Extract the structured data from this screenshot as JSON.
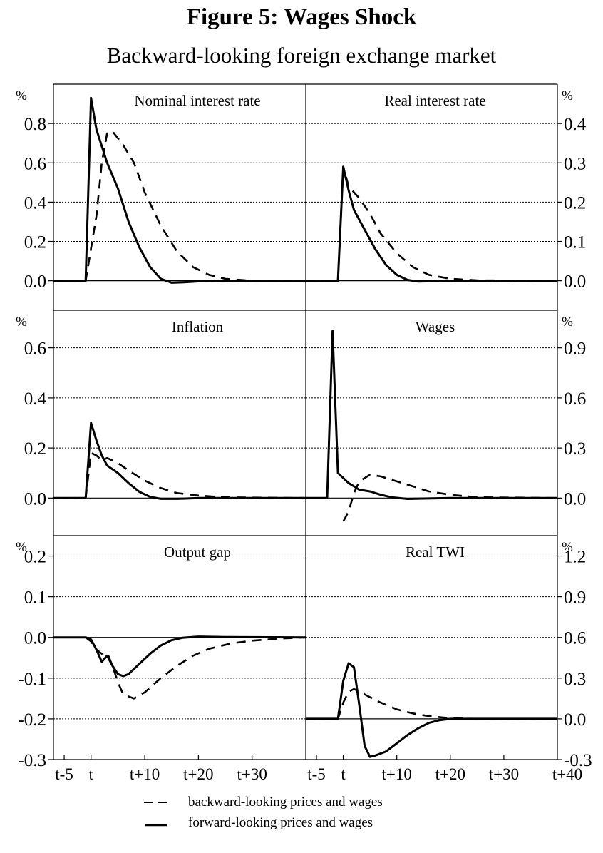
{
  "figure": {
    "title": "Figure 5: Wages Shock",
    "subtitle": "Backward-looking foreign exchange market"
  },
  "legend": {
    "items": [
      {
        "label": "backward-looking prices and wages",
        "style": "dashed"
      },
      {
        "label": "forward-looking prices and wages",
        "style": "solid"
      }
    ]
  },
  "x_axis": {
    "ticks": [
      {
        "value": -5,
        "label": "t-5"
      },
      {
        "value": 0,
        "label": "t"
      },
      {
        "value": 10,
        "label": "t+10"
      },
      {
        "value": 20,
        "label": "t+20"
      },
      {
        "value": 30,
        "label": "t+30"
      }
    ],
    "last_label": "t+40",
    "xlim": [
      -7,
      40
    ]
  },
  "chart_data": [
    {
      "type": "line",
      "panel": "top-left",
      "title": "Nominal interest rate",
      "unit": "%",
      "ylim": [
        -0.15,
        1.0
      ],
      "yticks": [
        0.0,
        0.2,
        0.4,
        0.6,
        0.8
      ],
      "tick_labels": [
        "0.0",
        "0.2",
        "0.4",
        "0.6",
        "0.8"
      ],
      "grid": true,
      "series": [
        {
          "style": "solid",
          "points": [
            [
              -7,
              0
            ],
            [
              -1,
              0
            ],
            [
              0,
              0.93
            ],
            [
              1,
              0.77
            ],
            [
              3,
              0.6
            ],
            [
              5,
              0.47
            ],
            [
              7,
              0.3
            ],
            [
              9,
              0.17
            ],
            [
              11,
              0.07
            ],
            [
              13,
              0.01
            ],
            [
              15,
              -0.01
            ],
            [
              17,
              -0.008
            ],
            [
              20,
              -0.003
            ],
            [
              25,
              0
            ],
            [
              40,
              0
            ]
          ]
        },
        {
          "style": "dashed",
          "points": [
            [
              -7,
              0
            ],
            [
              -1,
              0
            ],
            [
              1,
              0.33
            ],
            [
              2,
              0.6
            ],
            [
              3,
              0.75
            ],
            [
              4,
              0.76
            ],
            [
              6,
              0.69
            ],
            [
              8,
              0.6
            ],
            [
              10,
              0.45
            ],
            [
              13,
              0.28
            ],
            [
              16,
              0.15
            ],
            [
              19,
              0.07
            ],
            [
              22,
              0.03
            ],
            [
              25,
              0.01
            ],
            [
              30,
              0
            ],
            [
              40,
              0
            ]
          ]
        }
      ]
    },
    {
      "type": "line",
      "panel": "top-right",
      "title": "Real interest rate",
      "unit": "%",
      "ylim": [
        -0.075,
        0.5
      ],
      "yticks": [
        0.0,
        0.1,
        0.2,
        0.3,
        0.4
      ],
      "tick_labels": [
        "0.0",
        "0.1",
        "0.2",
        "0.3",
        "0.4"
      ],
      "grid": true,
      "series": [
        {
          "style": "solid",
          "points": [
            [
              -7,
              0
            ],
            [
              -1,
              0
            ],
            [
              0,
              0.29
            ],
            [
              1,
              0.23
            ],
            [
              2,
              0.18
            ],
            [
              4,
              0.13
            ],
            [
              6,
              0.08
            ],
            [
              8,
              0.04
            ],
            [
              10,
              0.015
            ],
            [
              12,
              0.002
            ],
            [
              14,
              -0.002
            ],
            [
              17,
              -0.001
            ],
            [
              20,
              0
            ],
            [
              40,
              0
            ]
          ]
        },
        {
          "style": "dashed",
          "points": [
            [
              -7,
              0
            ],
            [
              -1,
              0
            ],
            [
              0,
              0.29
            ],
            [
              1,
              0.24
            ],
            [
              3,
              0.21
            ],
            [
              5,
              0.17
            ],
            [
              7,
              0.12
            ],
            [
              10,
              0.07
            ],
            [
              13,
              0.035
            ],
            [
              16,
              0.015
            ],
            [
              20,
              0.005
            ],
            [
              25,
              0.001
            ],
            [
              40,
              0
            ]
          ]
        }
      ]
    },
    {
      "type": "line",
      "panel": "middle-left",
      "title": "Inflation",
      "unit": "%",
      "ylim": [
        -0.15,
        0.75
      ],
      "yticks": [
        0.0,
        0.2,
        0.4,
        0.6
      ],
      "tick_labels": [
        "0.0",
        "0.2",
        "0.4",
        "0.6"
      ],
      "grid": true,
      "series": [
        {
          "style": "solid",
          "points": [
            [
              -7,
              0
            ],
            [
              -1,
              0
            ],
            [
              0,
              0.3
            ],
            [
              1,
              0.23
            ],
            [
              2,
              0.17
            ],
            [
              3,
              0.13
            ],
            [
              4,
              0.115
            ],
            [
              5,
              0.1
            ],
            [
              7,
              0.06
            ],
            [
              9,
              0.025
            ],
            [
              11,
              0.005
            ],
            [
              13,
              -0.003
            ],
            [
              16,
              -0.003
            ],
            [
              20,
              0
            ],
            [
              40,
              0
            ]
          ]
        },
        {
          "style": "dashed",
          "points": [
            [
              -7,
              0
            ],
            [
              -1,
              0
            ],
            [
              0,
              0.18
            ],
            [
              1,
              0.17
            ],
            [
              2,
              0.15
            ],
            [
              3,
              0.16
            ],
            [
              5,
              0.14
            ],
            [
              7,
              0.11
            ],
            [
              10,
              0.07
            ],
            [
              13,
              0.04
            ],
            [
              16,
              0.02
            ],
            [
              20,
              0.01
            ],
            [
              25,
              0.003
            ],
            [
              40,
              0
            ]
          ]
        }
      ]
    },
    {
      "type": "line",
      "panel": "middle-right",
      "title": "Wages",
      "unit": "%",
      "ylim": [
        -0.225,
        1.125
      ],
      "yticks": [
        0.0,
        0.3,
        0.6,
        0.9
      ],
      "tick_labels": [
        "0.0",
        "0.3",
        "0.6",
        "0.9"
      ],
      "grid": true,
      "series": [
        {
          "style": "solid",
          "points": [
            [
              -7,
              0
            ],
            [
              -3,
              0
            ],
            [
              -2,
              1.0
            ],
            [
              -1,
              0.15
            ],
            [
              0,
              0.12
            ],
            [
              1,
              0.09
            ],
            [
              2,
              0.07
            ],
            [
              3,
              0.05
            ],
            [
              5,
              0.04
            ],
            [
              7,
              0.02
            ],
            [
              9,
              0.005
            ],
            [
              12,
              -0.005
            ],
            [
              15,
              -0.003
            ],
            [
              20,
              0
            ],
            [
              40,
              0
            ]
          ]
        },
        {
          "style": "dashed",
          "points": [
            [
              0,
              -0.14
            ],
            [
              1,
              -0.08
            ],
            [
              2,
              0.03
            ],
            [
              3,
              0.1
            ],
            [
              5,
              0.14
            ],
            [
              7,
              0.13
            ],
            [
              10,
              0.1
            ],
            [
              13,
              0.07
            ],
            [
              16,
              0.04
            ],
            [
              20,
              0.02
            ],
            [
              25,
              0.005
            ],
            [
              40,
              0
            ]
          ]
        }
      ]
    },
    {
      "type": "line",
      "panel": "bottom-left",
      "title": "Output gap",
      "unit": "%",
      "ylim": [
        -0.3,
        0.25
      ],
      "yticks": [
        -0.3,
        -0.2,
        -0.1,
        0.0,
        0.1,
        0.2
      ],
      "tick_labels": [
        "-0.3",
        "-0.2",
        "-0.1",
        "0.0",
        "0.1",
        "0.2"
      ],
      "grid": true,
      "series": [
        {
          "style": "solid",
          "points": [
            [
              -7,
              0
            ],
            [
              -1,
              0
            ],
            [
              0,
              -0.005
            ],
            [
              1,
              -0.03
            ],
            [
              2,
              -0.06
            ],
            [
              3,
              -0.045
            ],
            [
              4,
              -0.07
            ],
            [
              5,
              -0.09
            ],
            [
              6,
              -0.095
            ],
            [
              7,
              -0.09
            ],
            [
              9,
              -0.065
            ],
            [
              11,
              -0.04
            ],
            [
              13,
              -0.02
            ],
            [
              15,
              -0.007
            ],
            [
              17,
              -0.001
            ],
            [
              20,
              0.002
            ],
            [
              25,
              0.001
            ],
            [
              40,
              0
            ]
          ]
        },
        {
          "style": "dashed",
          "points": [
            [
              -1,
              0
            ],
            [
              0,
              -0.01
            ],
            [
              1,
              -0.03
            ],
            [
              2,
              -0.04
            ],
            [
              3,
              -0.037
            ],
            [
              4,
              -0.07
            ],
            [
              5,
              -0.11
            ],
            [
              6,
              -0.14
            ],
            [
              8,
              -0.15
            ],
            [
              10,
              -0.135
            ],
            [
              13,
              -0.1
            ],
            [
              16,
              -0.07
            ],
            [
              19,
              -0.045
            ],
            [
              22,
              -0.028
            ],
            [
              26,
              -0.015
            ],
            [
              30,
              -0.008
            ],
            [
              35,
              -0.003
            ],
            [
              40,
              0
            ]
          ]
        }
      ]
    },
    {
      "type": "line",
      "panel": "bottom-right",
      "title": "Real TWI",
      "unit": "%",
      "ylim": [
        -0.3,
        1.35
      ],
      "yticks": [
        -0.3,
        0.0,
        0.3,
        0.6,
        0.9,
        1.2
      ],
      "tick_labels": [
        "-0.3",
        "0.0",
        "0.3",
        "0.6",
        "0.9",
        "1.2"
      ],
      "grid": true,
      "series": [
        {
          "style": "solid",
          "points": [
            [
              -7,
              0
            ],
            [
              -1,
              0
            ],
            [
              0,
              0.28
            ],
            [
              1,
              0.41
            ],
            [
              2,
              0.38
            ],
            [
              3,
              0.1
            ],
            [
              4,
              -0.2
            ],
            [
              5,
              -0.28
            ],
            [
              6,
              -0.27
            ],
            [
              8,
              -0.24
            ],
            [
              10,
              -0.18
            ],
            [
              12,
              -0.12
            ],
            [
              14,
              -0.07
            ],
            [
              16,
              -0.03
            ],
            [
              18,
              -0.01
            ],
            [
              20,
              0
            ],
            [
              25,
              0
            ],
            [
              40,
              0
            ]
          ]
        },
        {
          "style": "dashed",
          "points": [
            [
              -7,
              0
            ],
            [
              -1,
              0
            ],
            [
              0,
              0.12
            ],
            [
              1,
              0.2
            ],
            [
              2,
              0.22
            ],
            [
              3,
              0.2
            ],
            [
              5,
              0.16
            ],
            [
              7,
              0.12
            ],
            [
              10,
              0.07
            ],
            [
              13,
              0.04
            ],
            [
              16,
              0.02
            ],
            [
              20,
              0.005
            ],
            [
              25,
              0
            ],
            [
              40,
              0
            ]
          ]
        }
      ]
    }
  ]
}
